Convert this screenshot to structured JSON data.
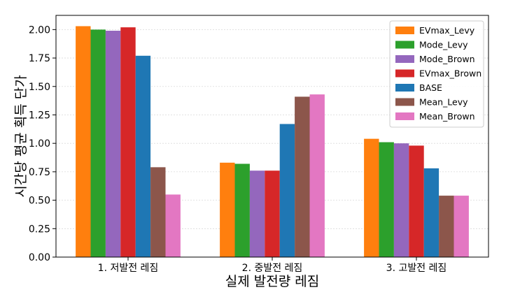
{
  "chart_data": {
    "type": "bar",
    "xlabel": "실제 발전량 레짐",
    "ylabel": "시간당 평균 획득 단가",
    "categories": [
      "1. 저발전 레짐",
      "2. 중발전 레짐",
      "3. 고발전 레짐"
    ],
    "ylim": [
      0,
      2.125
    ],
    "yticks": [
      "0.00",
      "0.25",
      "0.50",
      "0.75",
      "1.00",
      "1.25",
      "1.50",
      "1.75",
      "2.00"
    ],
    "grid": true,
    "legend_position": "top-right",
    "series": [
      {
        "name": "EVmax_Levy",
        "color": "#ff7f0e",
        "values": [
          2.03,
          0.83,
          1.04
        ]
      },
      {
        "name": "Mode_Levy",
        "color": "#2ca02c",
        "values": [
          2.0,
          0.82,
          1.01
        ]
      },
      {
        "name": "Mode_Brown",
        "color": "#9467bd",
        "values": [
          1.99,
          0.76,
          1.0
        ]
      },
      {
        "name": "EVmax_Brown",
        "color": "#d62728",
        "values": [
          2.02,
          0.76,
          0.98
        ]
      },
      {
        "name": "BASE",
        "color": "#1f77b4",
        "values": [
          1.77,
          1.17,
          0.78
        ]
      },
      {
        "name": "Mean_Levy",
        "color": "#8c564b",
        "values": [
          0.79,
          1.41,
          0.54
        ]
      },
      {
        "name": "Mean_Brown",
        "color": "#e377c2",
        "values": [
          0.55,
          1.43,
          0.54
        ]
      }
    ]
  }
}
